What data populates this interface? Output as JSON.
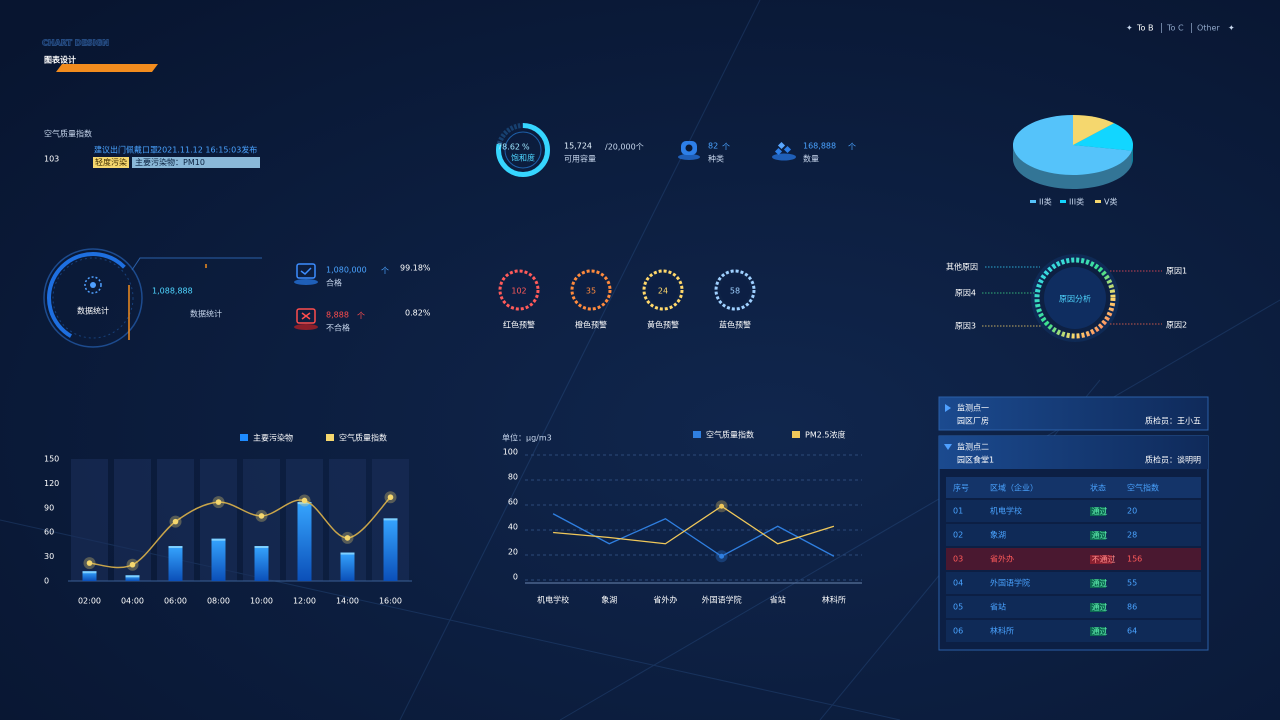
{
  "header": {
    "watermark": "CHART DESIGN",
    "title": "图表设计",
    "nav": [
      "To B",
      "To C",
      "Other"
    ]
  },
  "aqi": {
    "label": "空气质量指数",
    "value": 103,
    "advice": "建议出门佩戴口罩",
    "time": "2021.11.12 16:15:03发布",
    "level": "轻度污染",
    "pollutant": "主要污染物：PM10"
  },
  "capacity": {
    "gauge_value": 78.62,
    "gauge_unit": "%",
    "gauge_label": "饱和度",
    "value": "15,724",
    "total": "/20,000个",
    "label": "可用容量"
  },
  "kinds": {
    "value": "82",
    "unit": "个",
    "label": "种类"
  },
  "count": {
    "value": "168,888",
    "unit": "个",
    "label": "数量"
  },
  "stats": {
    "ring_label": "数据统计",
    "total": "1,088,888",
    "total_label": "数据统计",
    "pass": {
      "value": "1,080,000",
      "unit": "个",
      "label": "合格",
      "percent": "99.18%"
    },
    "fail": {
      "value": "8,888",
      "unit": "个",
      "label": "不合格",
      "percent": "0.82%"
    }
  },
  "warnings": [
    {
      "value": 102,
      "label": "红色预警",
      "color": "#ff5a5a"
    },
    {
      "value": 35,
      "label": "橙色预警",
      "color": "#ff8a3d"
    },
    {
      "value": 24,
      "label": "黄色预警",
      "color": "#ffd86b"
    },
    {
      "value": 58,
      "label": "蓝色预警",
      "color": "#9fd0ff"
    }
  ],
  "reasons": {
    "center": "原因分析",
    "labels": [
      "其他原因",
      "原因4",
      "原因3",
      "原因1",
      "原因2"
    ]
  },
  "monitors": [
    {
      "name": "监测点一",
      "place": "园区厂房",
      "inspector": "质检员：王小五"
    },
    {
      "name": "监测点二",
      "place": "园区食堂1",
      "inspector": "质检员：谈明明"
    }
  ],
  "table": {
    "header": [
      "序号",
      "区域（企业）",
      "状态",
      "空气指数"
    ],
    "rows": [
      {
        "cells": [
          "01",
          "机电学校",
          "通过",
          20
        ],
        "alert": false
      },
      {
        "cells": [
          "02",
          "象湖",
          "通过",
          28
        ],
        "alert": false
      },
      {
        "cells": [
          "03",
          "省外办",
          "不通过",
          156
        ],
        "alert": true
      },
      {
        "cells": [
          "04",
          "外国语学院",
          "通过",
          55
        ],
        "alert": false
      },
      {
        "cells": [
          "05",
          "省站",
          "通过",
          86
        ],
        "alert": false
      },
      {
        "cells": [
          "06",
          "林科所",
          "通过",
          64
        ],
        "alert": false
      }
    ]
  },
  "chart_data": [
    {
      "type": "pie",
      "categories": [
        "II类",
        "III类",
        "V类"
      ],
      "values": [
        72,
        16,
        12
      ],
      "colors": [
        "#55c3fa",
        "#12d6ff",
        "#f5d76e"
      ]
    },
    {
      "type": "bar",
      "categories": [
        "02:00",
        "04:00",
        "06:00",
        "08:00",
        "10:00",
        "12:00",
        "14:00",
        "16:00"
      ],
      "series": [
        {
          "name": "主要污染物",
          "color": "#1e8bff",
          "type": "bar",
          "values": [
            12,
            7,
            43,
            52,
            43,
            97,
            35,
            77
          ]
        },
        {
          "name": "空气质量指数",
          "color": "#f5d76e",
          "type": "line",
          "values": [
            22,
            20,
            73,
            97,
            80,
            99,
            53,
            103
          ]
        }
      ],
      "ylim": [
        0,
        150
      ],
      "yticks": [
        0,
        30,
        60,
        90,
        120,
        150
      ],
      "grid": false
    },
    {
      "type": "line",
      "unit_label": "单位：μg/m3",
      "categories": [
        "机电学校",
        "象湖",
        "省外办",
        "外国语学院",
        "省站",
        "林科所"
      ],
      "series": [
        {
          "name": "空气质量指数",
          "color": "#2f7fe0",
          "values": [
            53,
            29,
            49,
            19,
            43,
            19
          ]
        },
        {
          "name": "PM2.5浓度",
          "color": "#f0c85a",
          "values": [
            38,
            34,
            29,
            59,
            29,
            43
          ]
        }
      ],
      "ylim": [
        0,
        100
      ],
      "yticks": [
        0,
        20,
        40,
        60,
        80,
        100
      ],
      "grid": true
    }
  ]
}
